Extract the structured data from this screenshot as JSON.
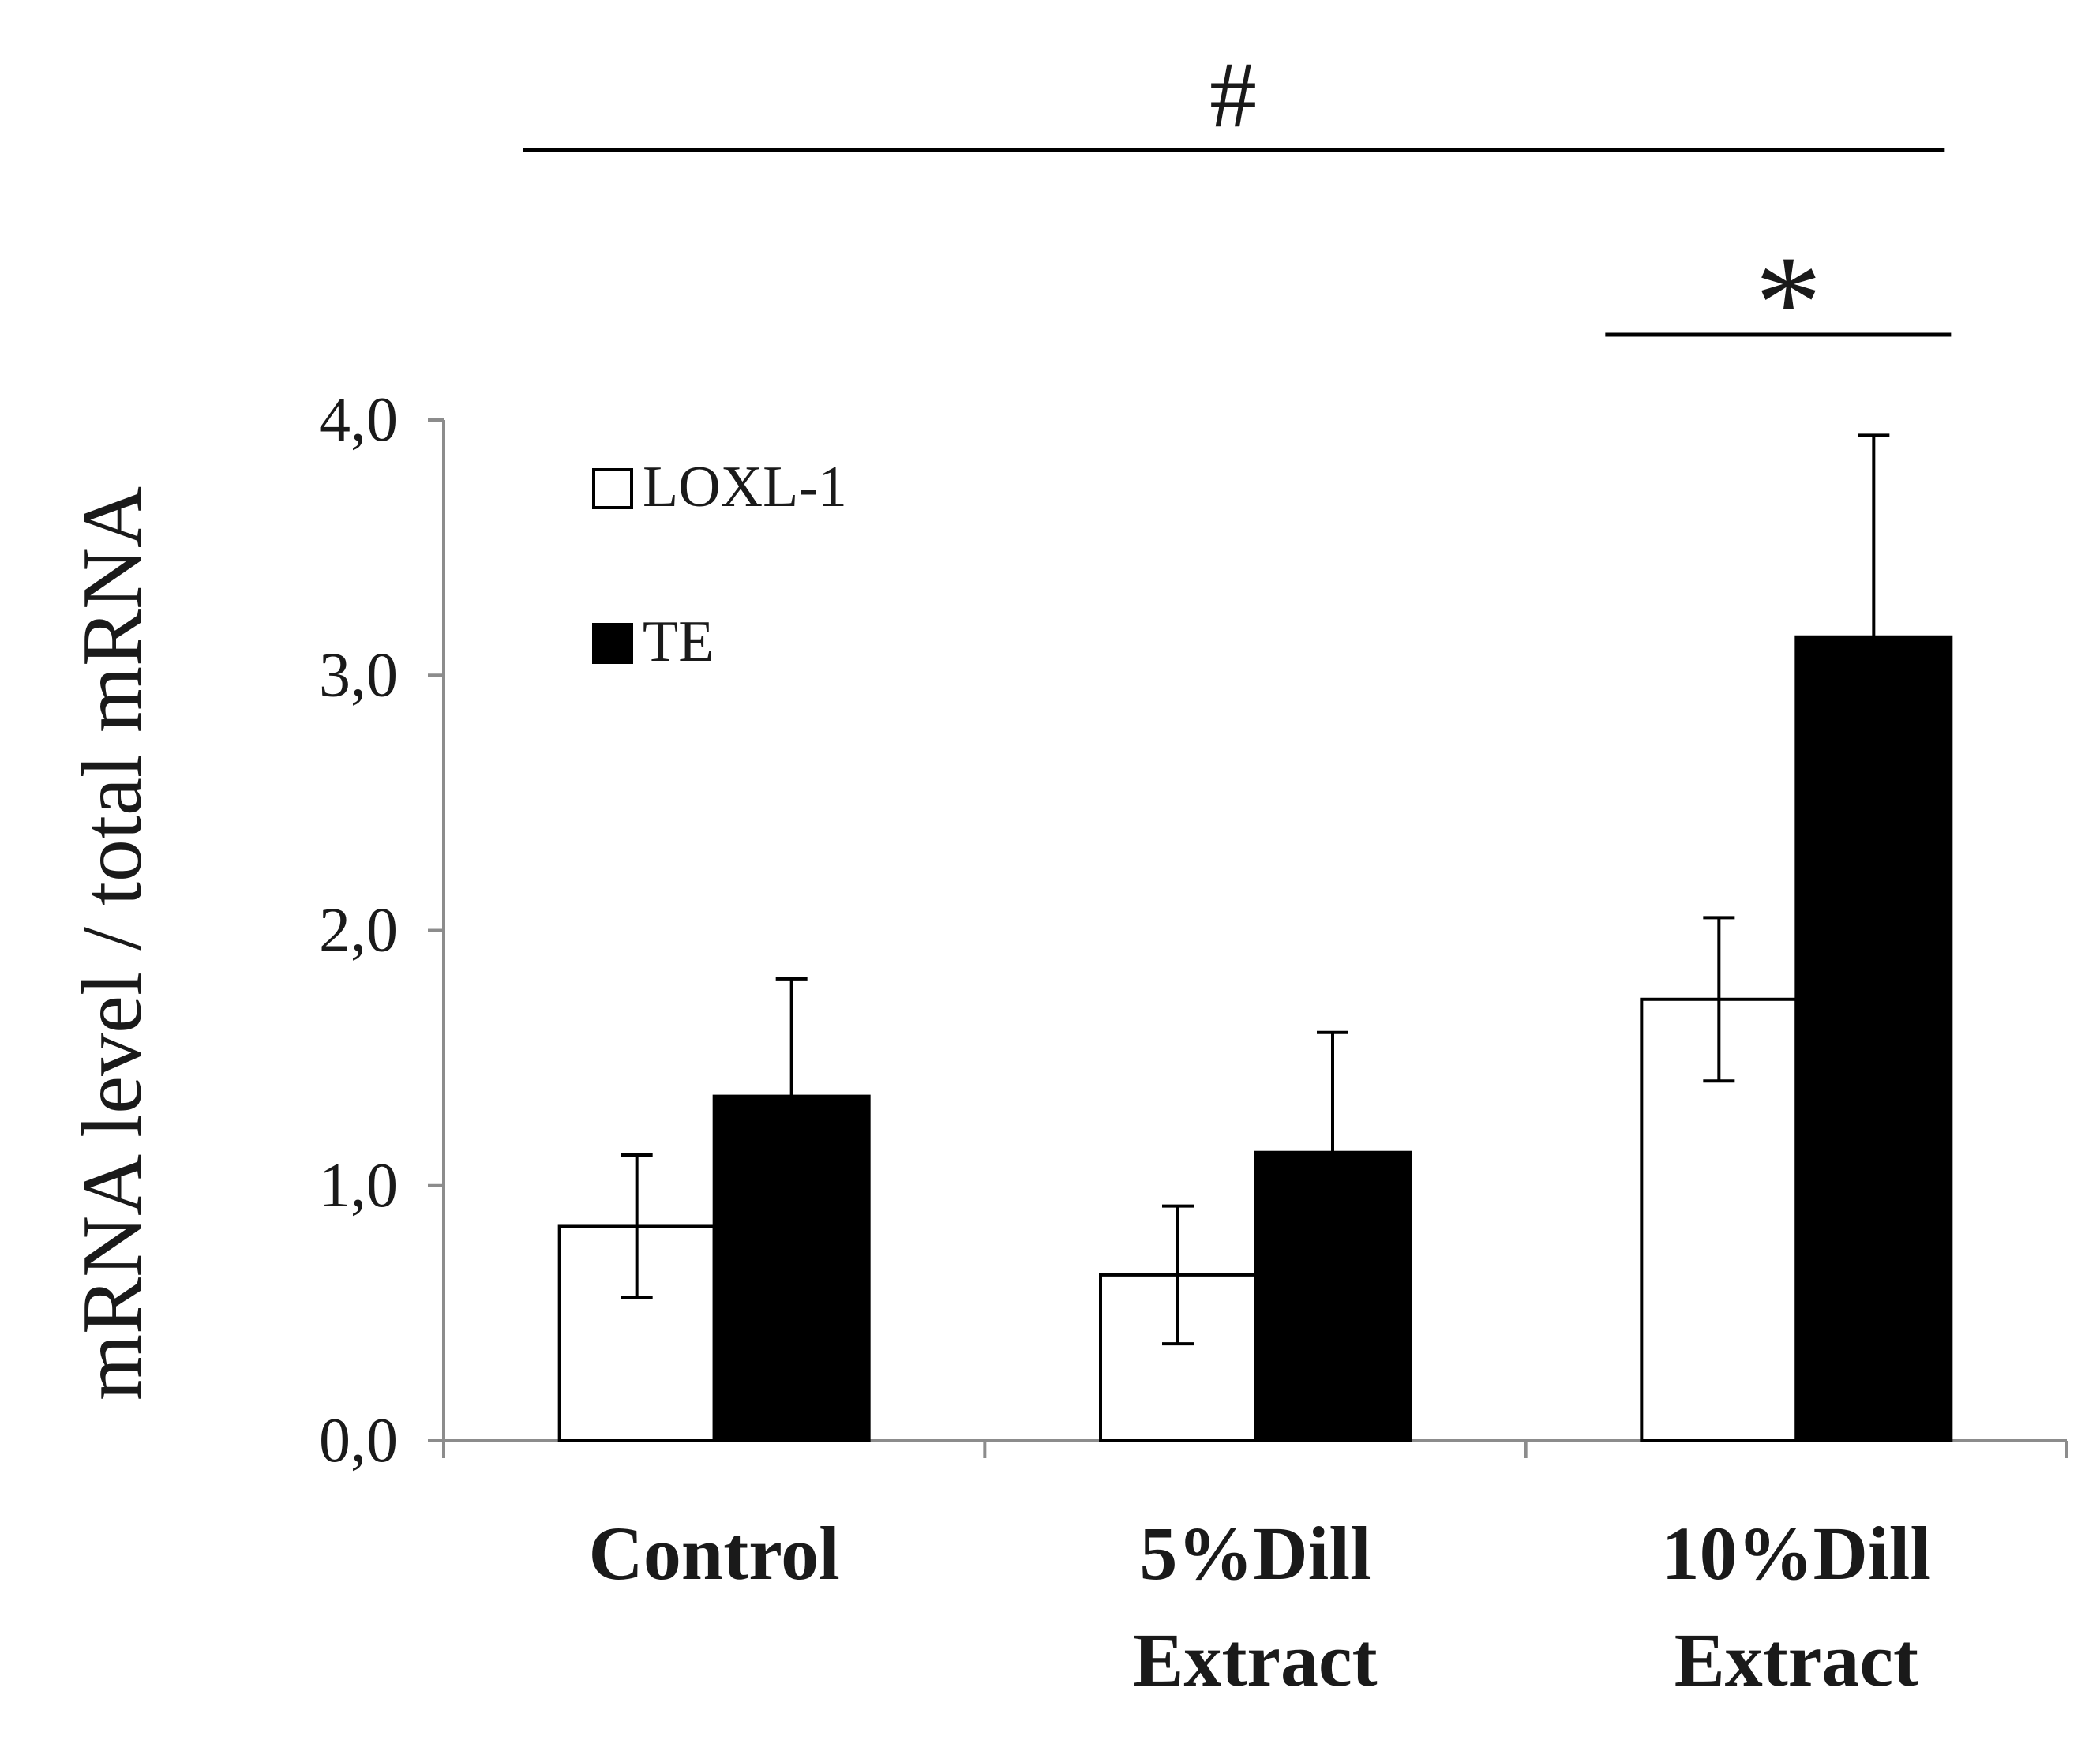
{
  "chart_data": {
    "type": "bar",
    "title": "",
    "xlabel": "",
    "ylabel": "mRNA level / total mRNA",
    "ylim": [
      0,
      4
    ],
    "yticks": [
      0,
      1,
      2,
      3,
      4
    ],
    "ytick_labels": [
      "0,0",
      "1,0",
      "2,0",
      "3,0",
      "4,0"
    ],
    "categories": [
      {
        "line1": "Control",
        "line2": ""
      },
      {
        "line1": "5%Dill",
        "line2": "Extract"
      },
      {
        "line1": "10%Dill",
        "line2": "Extract"
      }
    ],
    "series": [
      {
        "name": "LOXL-1",
        "color": "#ffffff",
        "values": [
          0.84,
          0.65,
          1.73
        ],
        "errors": [
          0.28,
          0.27,
          0.32
        ]
      },
      {
        "name": "TE",
        "color": "#000000",
        "values": [
          1.35,
          1.13,
          3.15
        ],
        "errors": [
          0.46,
          0.47,
          0.79
        ]
      }
    ],
    "legend": {
      "position": "top-left-inside",
      "entries": [
        "LOXL-1",
        "TE"
      ]
    },
    "annotations": [
      {
        "text": "#",
        "spans": "Control to 10%Dill Extract"
      },
      {
        "text": "*",
        "spans": "10%Dill Extract"
      }
    ],
    "grid": false
  }
}
